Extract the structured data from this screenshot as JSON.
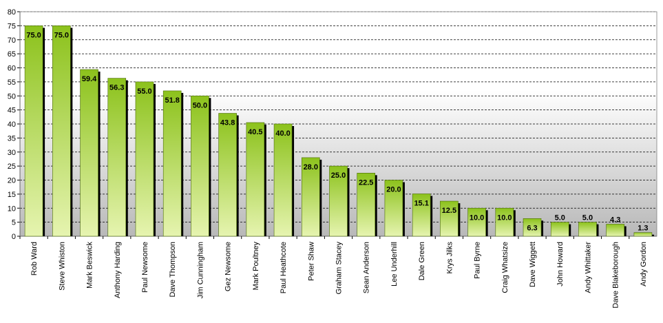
{
  "chart_data": {
    "type": "bar",
    "title": "",
    "xlabel": "",
    "ylabel": "",
    "ylim": [
      0,
      80
    ],
    "ytick_step": 5,
    "grid": true,
    "legend": "none",
    "categories": [
      "Rob Ward",
      "Steve Whiston",
      "Mark Beswick",
      "Anthony Harding",
      "Paul Newsome",
      "Dave Thompson",
      "Jim Cunningham",
      "Gez Newsome",
      "Mark Poultney",
      "Paul Heathcote",
      "Peter Shaw",
      "Graham Stacey",
      "Sean Anderson",
      "Lee Underhill",
      "Dale Green",
      "Krys Jilks",
      "Paul Byrne",
      "Craig Whatsize",
      "Dave Wiggett",
      "John Howard",
      "Andy Whittaker",
      "Dave Blakeborough",
      "Andy Gordon"
    ],
    "values": [
      75.0,
      75.0,
      59.4,
      56.3,
      55.0,
      51.8,
      50.0,
      43.8,
      40.5,
      40.0,
      28.0,
      25.0,
      22.5,
      20.0,
      15.1,
      12.5,
      10.0,
      10.0,
      6.3,
      5.0,
      5.0,
      4.3,
      1.3
    ],
    "labels": [
      "75.0",
      "75.0",
      "59.4",
      "56.3",
      "55.0",
      "51.8",
      "50.0",
      "43.8",
      "40.5",
      "40.0",
      "28.0",
      "25.0",
      "22.5",
      "20.0",
      "15.1",
      "12.5",
      "10.0",
      "10.0",
      "6.3",
      "5.0",
      "5.0",
      "4.3",
      "1.3"
    ],
    "colors": {
      "bar_top": "#8cc21c",
      "bar_bottom": "#e6f4b0",
      "bar_edge": "#4a6a08",
      "shadow": "#000000",
      "plot_bg_top": "#ffffff",
      "plot_bg_bottom": "#b8b8b8",
      "grid": "#000000"
    }
  }
}
